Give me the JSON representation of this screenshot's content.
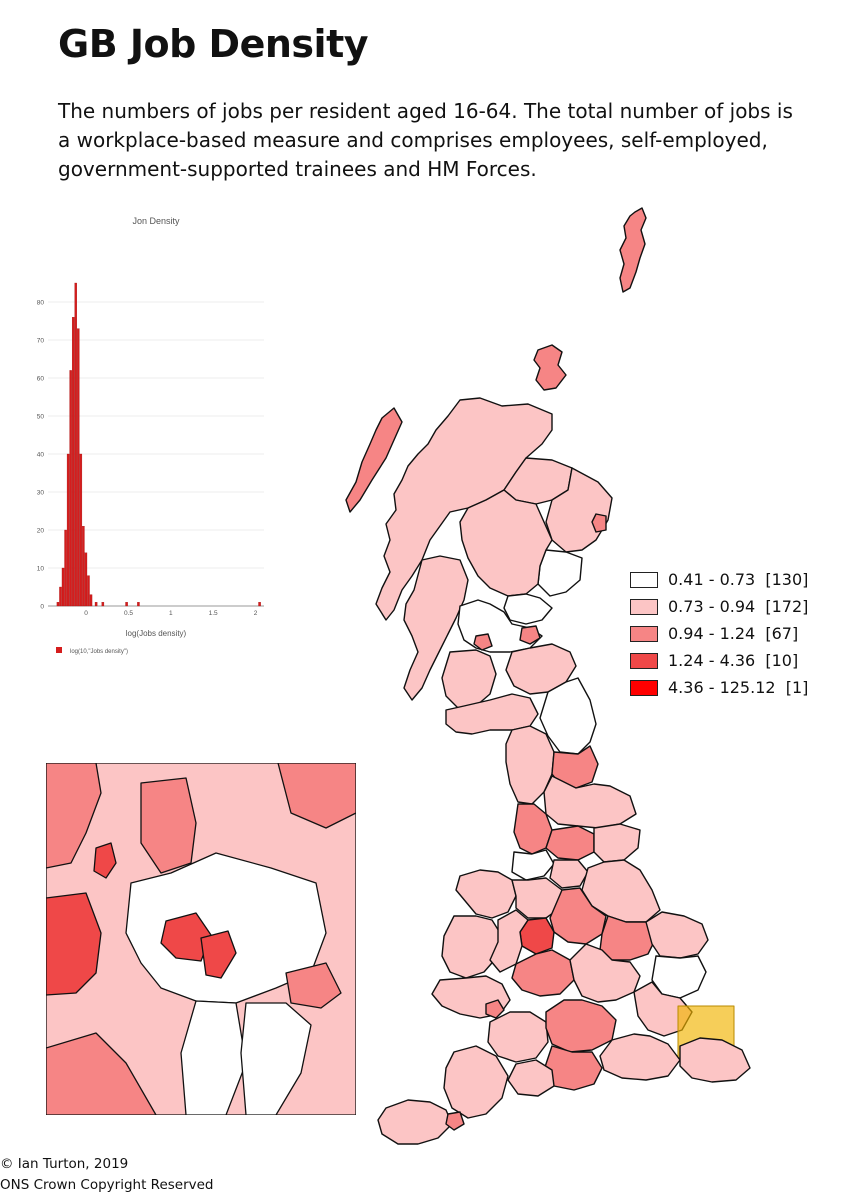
{
  "title": "GB Job Density",
  "subtitle": "The numbers of jobs per resident aged 16-64. The total number of jobs is a workplace-based measure and comprises employees, self-employed, government-supported trainees and HM Forces.",
  "legend": [
    {
      "label": "0.41 - 0.73  [130]",
      "color": "#ffffff"
    },
    {
      "label": "0.73 - 0.94  [172]",
      "color": "#fcc5c5"
    },
    {
      "label": "0.94 - 1.24  [67]",
      "color": "#f68585"
    },
    {
      "label": "1.24 - 4.36  [10]",
      "color": "#ef4848"
    },
    {
      "label": "4.36 - 125.12  [1]",
      "color": "#ff0000"
    }
  ],
  "credit": {
    "line1": "© Ian Turton, 2019",
    "line2": "ONS Crown Copyright Reserved"
  },
  "chart_data": {
    "type": "bar",
    "title": "Jon Density",
    "xlabel": "log(Jobs density)",
    "legend_entry": "log(10,\"Jobs density\")",
    "bar_color": "#d51d1d",
    "xlim": [
      -0.45,
      2.1
    ],
    "ylim": [
      0,
      90
    ],
    "x_ticks": [
      0,
      0.5,
      1,
      1.5,
      2
    ],
    "y_ticks": [
      0,
      10,
      20,
      30,
      40,
      50,
      60,
      70,
      80
    ],
    "bins": [
      {
        "x": -0.33,
        "count": 1
      },
      {
        "x": -0.3,
        "count": 5
      },
      {
        "x": -0.27,
        "count": 10
      },
      {
        "x": -0.24,
        "count": 20
      },
      {
        "x": -0.21,
        "count": 40
      },
      {
        "x": -0.18,
        "count": 62
      },
      {
        "x": -0.15,
        "count": 76
      },
      {
        "x": -0.12,
        "count": 85
      },
      {
        "x": -0.09,
        "count": 73
      },
      {
        "x": -0.06,
        "count": 40
      },
      {
        "x": -0.03,
        "count": 21
      },
      {
        "x": 0.0,
        "count": 14
      },
      {
        "x": 0.03,
        "count": 8
      },
      {
        "x": 0.06,
        "count": 3
      },
      {
        "x": 0.12,
        "count": 1
      },
      {
        "x": 0.2,
        "count": 1
      },
      {
        "x": 0.48,
        "count": 1
      },
      {
        "x": 0.62,
        "count": 1
      },
      {
        "x": 2.05,
        "count": 1
      }
    ]
  }
}
